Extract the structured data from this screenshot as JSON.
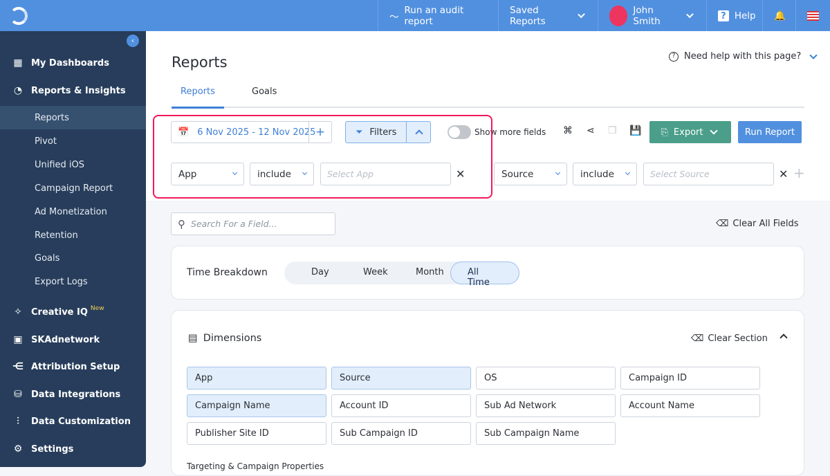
{
  "topbar": {
    "audit_label": "Run an audit report",
    "saved_reports_label": "Saved Reports",
    "user_name": "John Smith",
    "help_label": "Help",
    "brand_color": "#5190df"
  },
  "sidebar": {
    "items": [
      {
        "label": "My Dashboards",
        "icon": "grid-icon"
      },
      {
        "label": "Reports & Insights",
        "icon": "pie-chart-icon"
      },
      {
        "label": "Creative IQ",
        "icon": "sparkle-icon",
        "badge": "New"
      },
      {
        "label": "SKAdnetwork",
        "icon": "phone-lock-icon"
      },
      {
        "label": "Attribution Setup",
        "icon": "branch-icon"
      },
      {
        "label": "Data Integrations",
        "icon": "database-plus-icon"
      },
      {
        "label": "Data Customization",
        "icon": "sliders-icon"
      },
      {
        "label": "Settings",
        "icon": "gear-icon"
      }
    ],
    "sub_items": [
      "Reports",
      "Pivot",
      "Unified iOS",
      "Campaign Report",
      "Ad Monetization",
      "Retention",
      "Goals",
      "Export Logs"
    ],
    "active": "Reports"
  },
  "page": {
    "title": "Reports",
    "help_text": "Need help with this page?",
    "tabs": [
      "Reports",
      "Goals"
    ],
    "active_tab": "Reports"
  },
  "toolbar": {
    "date_range": "6 Nov 2025 - 12 Nov 2025",
    "filters_label": "Filters",
    "show_more_fields_label": "Show more fields",
    "show_more_fields_on": false,
    "export_label": "Export",
    "run_report_label": "Run Report",
    "export_color": "#4a9e8a",
    "run_color": "#5190df"
  },
  "filters": [
    {
      "field": "App",
      "operator": "include",
      "placeholder": "Select App"
    },
    {
      "field": "Source",
      "operator": "include",
      "placeholder": "Select Source"
    }
  ],
  "search": {
    "placeholder": "Search For a Field..."
  },
  "clear_all_label": "Clear All Fields",
  "time_breakdown": {
    "label": "Time Breakdown",
    "options": [
      "Day",
      "Week",
      "Month",
      "All Time"
    ],
    "selected": "All Time"
  },
  "dimensions": {
    "title": "Dimensions",
    "clear_label": "Clear Section",
    "items": [
      {
        "label": "App",
        "selected": true
      },
      {
        "label": "Source",
        "selected": true
      },
      {
        "label": "OS",
        "selected": false
      },
      {
        "label": "Campaign ID",
        "selected": false
      },
      {
        "label": "Campaign Name",
        "selected": true
      },
      {
        "label": "Account ID",
        "selected": false
      },
      {
        "label": "Sub Ad Network",
        "selected": false
      },
      {
        "label": "Account Name",
        "selected": false
      },
      {
        "label": "Publisher Site ID",
        "selected": false
      },
      {
        "label": "Sub Campaign ID",
        "selected": false
      },
      {
        "label": "Sub Campaign Name",
        "selected": false
      }
    ],
    "next_section": "Targeting & Campaign Properties"
  }
}
